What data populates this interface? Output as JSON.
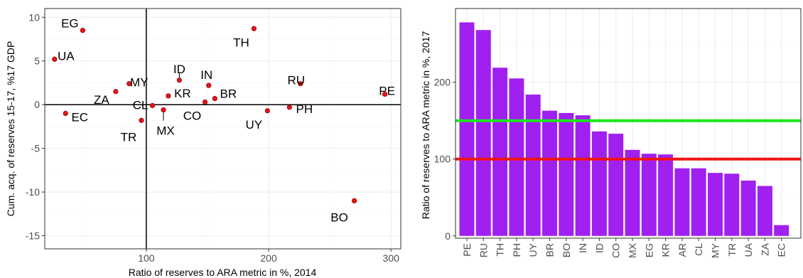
{
  "chart_data": [
    {
      "type": "scatter",
      "xlabel": "Ratio of reserves to ARA metric in %, 2014",
      "ylabel": "Cum. acq. of reserves 15-17, %17 GDP",
      "xlim": [
        17,
        308
      ],
      "ylim": [
        -16.5,
        11
      ],
      "xticks": [
        100,
        200,
        300
      ],
      "yticks": [
        -15,
        -10,
        -5,
        0,
        5,
        10
      ],
      "xticklabels": [
        "100",
        "200",
        "300"
      ],
      "yticklabels": [
        "-15",
        "-10",
        "-5",
        "0",
        "5",
        "10"
      ],
      "vline": 100,
      "hline": 0,
      "grid": true,
      "point_color": "#e8141a",
      "points": [
        {
          "label": "EG",
          "x": 48,
          "y": 8.5
        },
        {
          "label": "UA",
          "x": 25,
          "y": 5.2
        },
        {
          "label": "TH",
          "x": 188,
          "y": 8.7
        },
        {
          "label": "MY",
          "x": 86,
          "y": 2.4
        },
        {
          "label": "ZA",
          "x": 75,
          "y": 1.5
        },
        {
          "label": "EC",
          "x": 34,
          "y": -1.0
        },
        {
          "label": "CL",
          "x": 105,
          "y": -0.1
        },
        {
          "label": "TR",
          "x": 96,
          "y": -1.8
        },
        {
          "label": "MX",
          "x": 114,
          "y": -0.6
        },
        {
          "label": "ID",
          "x": 127,
          "y": 2.8
        },
        {
          "label": "KR",
          "x": 118,
          "y": 1.0
        },
        {
          "label": "IN",
          "x": 151,
          "y": 2.2
        },
        {
          "label": "BR",
          "x": 156,
          "y": 0.7
        },
        {
          "label": "CO",
          "x": 148,
          "y": 0.3
        },
        {
          "label": "RU",
          "x": 226,
          "y": 2.4
        },
        {
          "label": "PH",
          "x": 217,
          "y": -0.3
        },
        {
          "label": "UY",
          "x": 199,
          "y": -0.7
        },
        {
          "label": "PE",
          "x": 295,
          "y": 1.2
        },
        {
          "label": "BO",
          "x": 270,
          "y": -11.0
        }
      ]
    },
    {
      "type": "bar",
      "ylabel": "Ratio of reserves to ARA metric in %, 2017",
      "categories": [
        "PE",
        "RU",
        "TH",
        "PH",
        "UY",
        "BR",
        "BO",
        "IN",
        "ID",
        "CO",
        "MX",
        "EG",
        "KR",
        "AR",
        "CL",
        "MY",
        "TR",
        "UA",
        "ZA",
        "EC"
      ],
      "values": [
        278,
        268,
        219,
        205,
        184,
        163,
        160,
        157,
        136,
        133,
        112,
        107,
        106,
        88,
        88,
        82,
        81,
        72,
        65,
        14
      ],
      "ylim": [
        -3,
        296
      ],
      "yticks": [
        0,
        100,
        200
      ],
      "yticklabels": [
        "0",
        "100",
        "200"
      ],
      "bar_color": "#a020f0",
      "hlines": [
        {
          "y": 150,
          "color": "#1ee61e"
        },
        {
          "y": 100,
          "color": "#f01414"
        }
      ],
      "grid": true
    }
  ]
}
